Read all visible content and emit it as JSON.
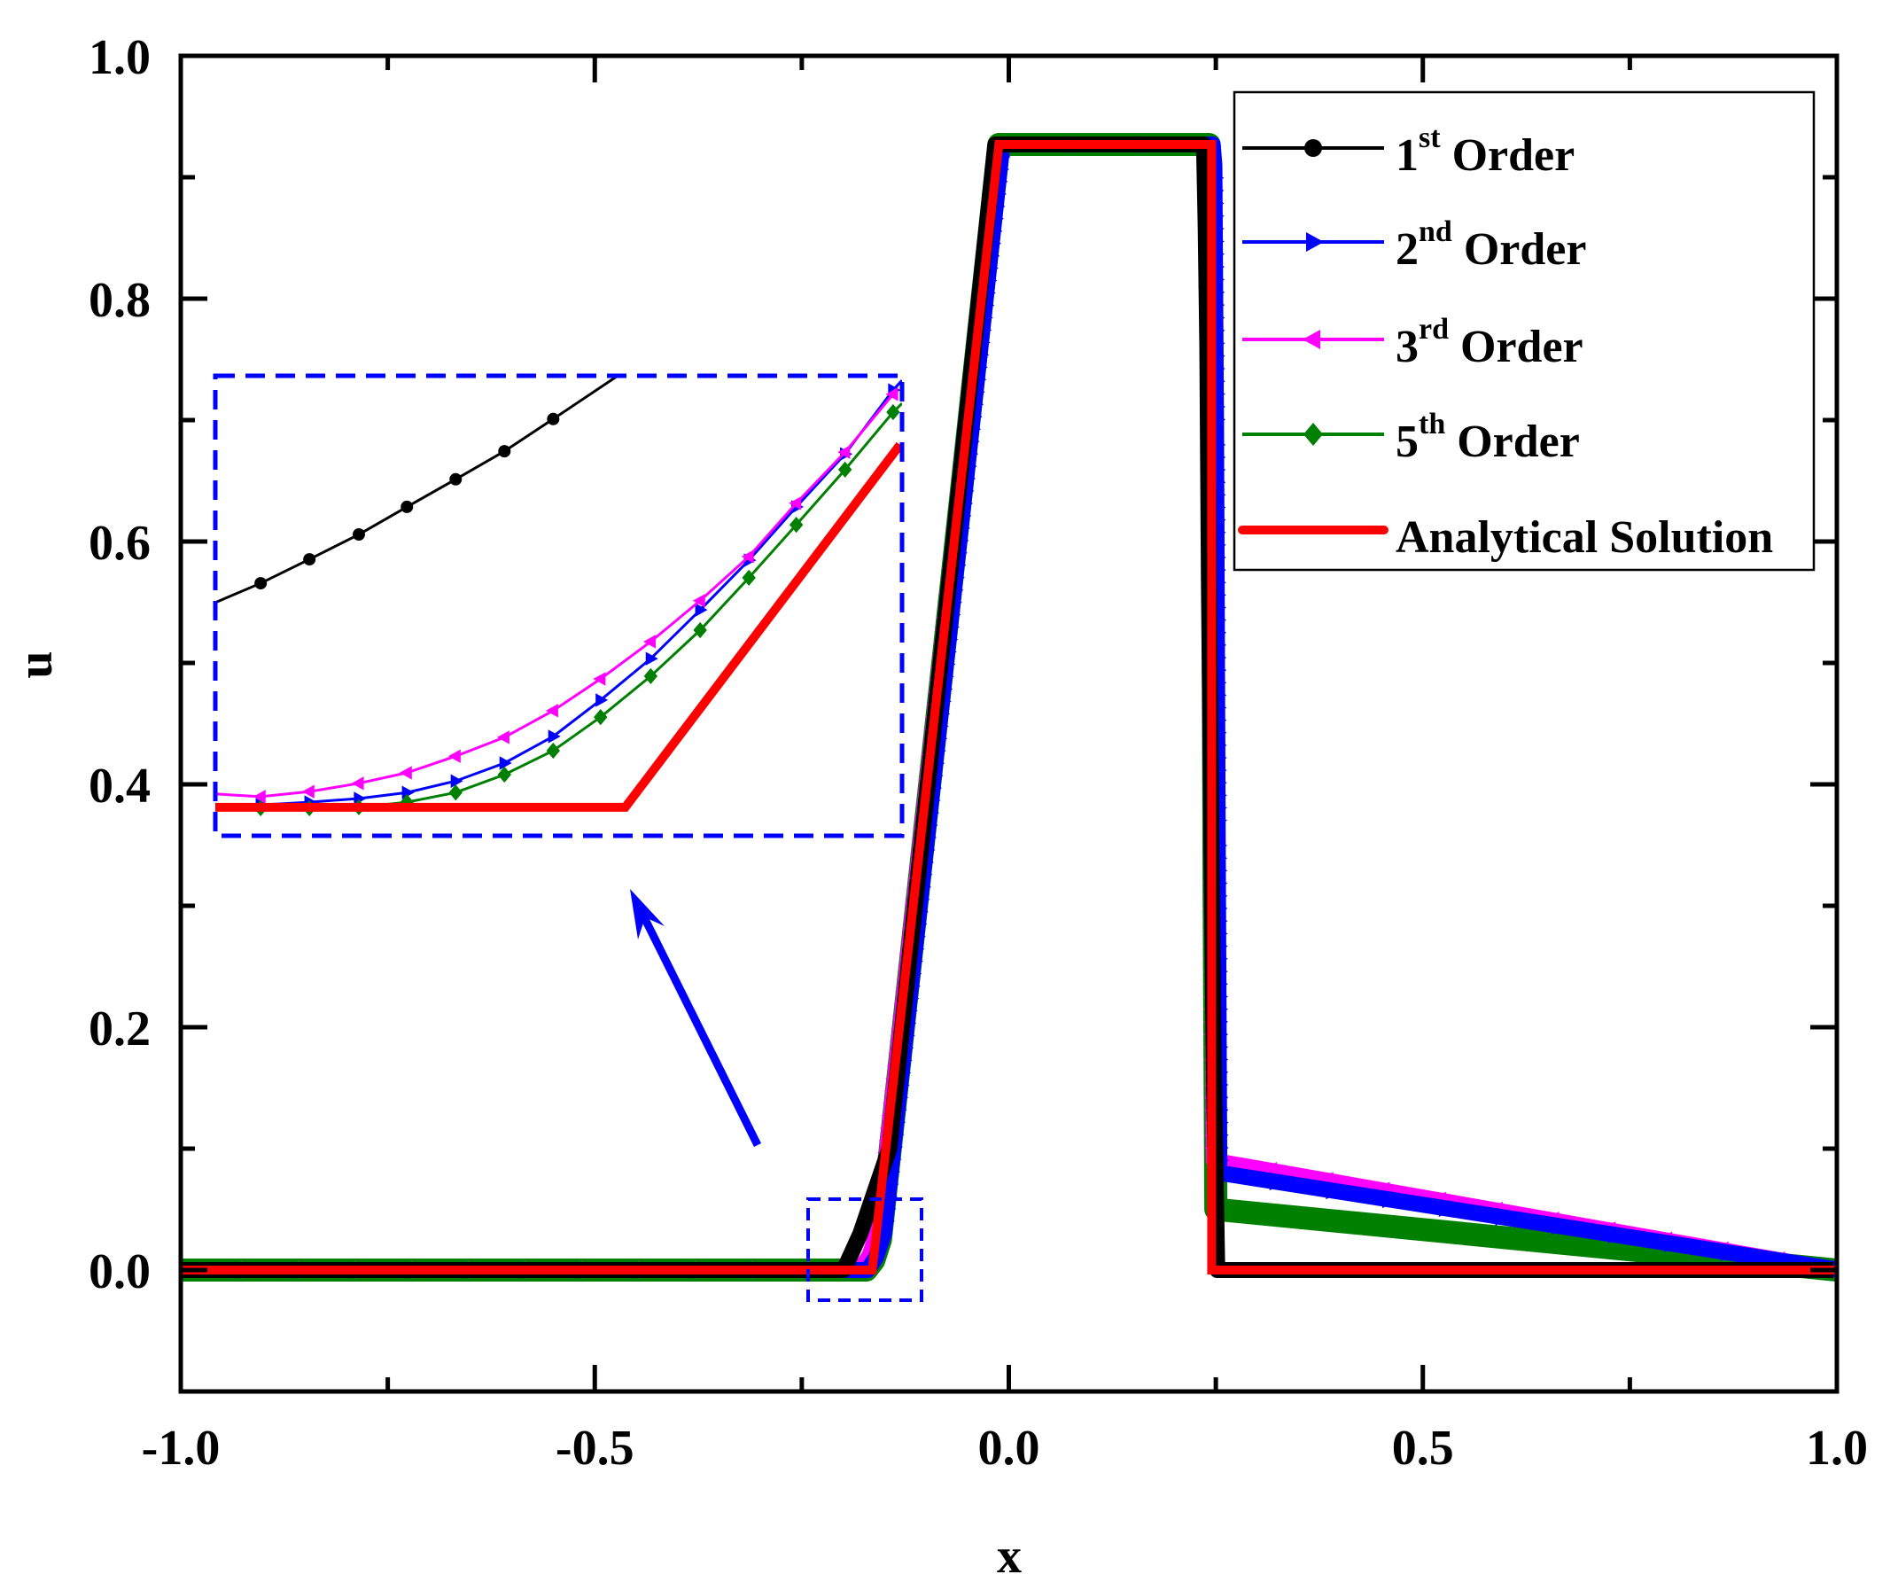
{
  "chart_data": {
    "type": "line",
    "title": "",
    "xlabel": "x",
    "ylabel": "u",
    "xlim": [
      -1.0,
      1.0
    ],
    "ylim": [
      -0.1,
      1.0
    ],
    "grid": false,
    "legend_position": "upper right (inside)",
    "x_ticks": [
      "-1.0",
      "-0.5",
      "0.0",
      "0.5",
      "1.0"
    ],
    "x_tick_values": [
      -1.0,
      -0.5,
      0.0,
      0.5,
      1.0
    ],
    "x_minor_ticks": [
      -0.75,
      -0.25,
      0.25,
      0.75
    ],
    "y_ticks": [
      "0.0",
      "0.2",
      "0.4",
      "0.6",
      "0.8",
      "1.0"
    ],
    "y_tick_values": [
      0.0,
      0.2,
      0.4,
      0.6,
      0.8,
      1.0
    ],
    "y_minor_ticks": [
      -0.1,
      0.1,
      0.3,
      0.5,
      0.7,
      0.9
    ],
    "series": [
      {
        "name": "1st Order",
        "sup": "st",
        "base": "1",
        "suffix": " Order",
        "color": "#000000",
        "marker": "circle",
        "line_width": 3,
        "x": [
          -1.0,
          -0.195,
          -0.175,
          -0.16,
          -0.14,
          -0.012,
          0.24,
          0.242,
          0.244,
          0.246,
          0.248,
          0.25,
          0.252,
          0.254,
          0.256,
          1.0
        ],
        "y": [
          0.0,
          0.0,
          0.03,
          0.06,
          0.1,
          0.927,
          0.927,
          0.86,
          0.76,
          0.56,
          0.42,
          0.28,
          0.16,
          0.08,
          0.0,
          0.0
        ]
      },
      {
        "name": "2nd Order",
        "sup": "nd",
        "base": "2",
        "suffix": " Order",
        "color": "#0000ff",
        "marker": "triangle-right",
        "line_width": 3,
        "x": [
          -1.0,
          -0.175,
          -0.165,
          -0.155,
          -0.012,
          0.242,
          0.244,
          0.246,
          0.248,
          0.25,
          1.0
        ],
        "y": [
          0.0,
          0.0,
          0.01,
          0.03,
          0.927,
          0.927,
          0.91,
          0.69,
          0.36,
          0.08,
          0.0
        ]
      },
      {
        "name": "3rd Order",
        "sup": "rd",
        "base": "3",
        "suffix": " Order",
        "color": "#ff00ff",
        "marker": "triangle-left",
        "line_width": 3,
        "x": [
          -1.0,
          -0.178,
          -0.166,
          -0.155,
          -0.012,
          0.242,
          0.244,
          0.246,
          0.248,
          0.25,
          1.0
        ],
        "y": [
          0.0,
          0.0,
          0.012,
          0.035,
          0.927,
          0.927,
          0.86,
          0.69,
          0.35,
          0.09,
          0.0
        ]
      },
      {
        "name": "5th Order",
        "sup": "th",
        "base": "5",
        "suffix": " Order",
        "color": "#008000",
        "marker": "diamond",
        "line_width": 3,
        "x": [
          -1.0,
          -0.172,
          -0.163,
          -0.155,
          -0.012,
          0.242,
          0.244,
          0.246,
          0.248,
          0.25,
          1.0
        ],
        "y": [
          0.0,
          0.0,
          0.008,
          0.025,
          0.927,
          0.927,
          0.88,
          0.68,
          0.3,
          0.05,
          0.0
        ]
      },
      {
        "name": "Analytical Solution",
        "sup": "",
        "base": "Analytical Solution",
        "suffix": "",
        "color": "#ff0000",
        "marker": "none",
        "line_width": 10,
        "x": [
          -1.0,
          -0.165,
          -0.012,
          0.245,
          0.245,
          1.0
        ],
        "y": [
          0.0,
          0.0,
          0.927,
          0.927,
          0.0,
          0.0
        ]
      }
    ],
    "inset": {
      "description": "Zoomed view of the foot of the expansion ramp near x ≈ -0.165, u ≈ 0",
      "source_region": {
        "x": [
          -0.25,
          -0.112
        ],
        "u": [
          -0.025,
          0.06
        ]
      },
      "coordinate_note": "points are normalized [0..1] positions within the inset box (nx left→right, ny top→bottom)",
      "series": [
        {
          "name": "1st Order",
          "color": "#000000",
          "marker": "circle",
          "points": [
            [
              0,
              0.493
            ],
            [
              0.066,
              0.451
            ],
            [
              0.137,
              0.399
            ],
            [
              0.209,
              0.345
            ],
            [
              0.279,
              0.285
            ],
            [
              0.35,
              0.225
            ],
            [
              0.421,
              0.164
            ],
            [
              0.492,
              0.094
            ],
            [
              0.586,
              0.0
            ]
          ],
          "marker_points": [
            [
              0.066,
              0.451
            ],
            [
              0.137,
              0.399
            ],
            [
              0.209,
              0.345
            ],
            [
              0.279,
              0.285
            ],
            [
              0.35,
              0.225
            ],
            [
              0.421,
              0.164
            ],
            [
              0.492,
              0.094
            ]
          ]
        },
        {
          "name": "2nd Order",
          "color": "#0000ff",
          "marker": "triangle-right",
          "points": [
            [
              0,
              0.935
            ],
            [
              0.066,
              0.933
            ],
            [
              0.137,
              0.927
            ],
            [
              0.209,
              0.919
            ],
            [
              0.279,
              0.906
            ],
            [
              0.35,
              0.881
            ],
            [
              0.421,
              0.842
            ],
            [
              0.492,
              0.784
            ],
            [
              0.561,
              0.705
            ],
            [
              0.634,
              0.615
            ],
            [
              0.706,
              0.509
            ],
            [
              0.777,
              0.401
            ],
            [
              0.846,
              0.285
            ],
            [
              0.917,
              0.17
            ],
            [
              0.987,
              0.031
            ],
            [
              1.0,
              0.01
            ]
          ],
          "marker_points": [
            [
              0.066,
              0.933
            ],
            [
              0.137,
              0.927
            ],
            [
              0.209,
              0.919
            ],
            [
              0.279,
              0.906
            ],
            [
              0.35,
              0.881
            ],
            [
              0.421,
              0.842
            ],
            [
              0.492,
              0.784
            ],
            [
              0.561,
              0.705
            ],
            [
              0.634,
              0.615
            ],
            [
              0.706,
              0.509
            ],
            [
              0.777,
              0.401
            ],
            [
              0.846,
              0.285
            ],
            [
              0.917,
              0.17
            ],
            [
              0.987,
              0.031
            ]
          ]
        },
        {
          "name": "3rd Order",
          "color": "#ff00ff",
          "marker": "triangle-left",
          "points": [
            [
              0,
              0.909
            ],
            [
              0.066,
              0.915
            ],
            [
              0.137,
              0.904
            ],
            [
              0.209,
              0.886
            ],
            [
              0.279,
              0.863
            ],
            [
              0.35,
              0.827
            ],
            [
              0.421,
              0.786
            ],
            [
              0.492,
              0.728
            ],
            [
              0.561,
              0.659
            ],
            [
              0.634,
              0.578
            ],
            [
              0.706,
              0.489
            ],
            [
              0.777,
              0.393
            ],
            [
              0.846,
              0.277
            ],
            [
              0.917,
              0.166
            ],
            [
              0.987,
              0.04
            ]
          ],
          "marker_points": [
            [
              0.066,
              0.915
            ],
            [
              0.137,
              0.904
            ],
            [
              0.209,
              0.886
            ],
            [
              0.279,
              0.863
            ],
            [
              0.35,
              0.827
            ],
            [
              0.421,
              0.786
            ],
            [
              0.492,
              0.728
            ],
            [
              0.561,
              0.659
            ],
            [
              0.634,
              0.578
            ],
            [
              0.706,
              0.489
            ],
            [
              0.777,
              0.393
            ],
            [
              0.846,
              0.277
            ],
            [
              0.917,
              0.166
            ],
            [
              0.987,
              0.04
            ]
          ]
        },
        {
          "name": "5th Order",
          "color": "#008000",
          "marker": "diamond",
          "points": [
            [
              0,
              0.94
            ],
            [
              0.066,
              0.94
            ],
            [
              0.137,
              0.94
            ],
            [
              0.209,
              0.938
            ],
            [
              0.279,
              0.927
            ],
            [
              0.35,
              0.906
            ],
            [
              0.421,
              0.867
            ],
            [
              0.492,
              0.815
            ],
            [
              0.561,
              0.742
            ],
            [
              0.634,
              0.653
            ],
            [
              0.706,
              0.553
            ],
            [
              0.777,
              0.439
            ],
            [
              0.846,
              0.324
            ],
            [
              0.917,
              0.204
            ],
            [
              0.987,
              0.079
            ],
            [
              1.0,
              0.06
            ]
          ],
          "marker_points": [
            [
              0.066,
              0.94
            ],
            [
              0.137,
              0.94
            ],
            [
              0.209,
              0.938
            ],
            [
              0.279,
              0.927
            ],
            [
              0.35,
              0.906
            ],
            [
              0.421,
              0.867
            ],
            [
              0.492,
              0.815
            ],
            [
              0.561,
              0.742
            ],
            [
              0.634,
              0.653
            ],
            [
              0.706,
              0.553
            ],
            [
              0.777,
              0.439
            ],
            [
              0.846,
              0.324
            ],
            [
              0.917,
              0.204
            ],
            [
              0.987,
              0.079
            ]
          ]
        },
        {
          "name": "Analytical Solution",
          "color": "#ff0000",
          "marker": "none",
          "points": [
            [
              0,
              0.938
            ],
            [
              0.597,
              0.938
            ],
            [
              0.997,
              0.15
            ]
          ],
          "marker_points": []
        }
      ]
    },
    "annotations": [
      {
        "type": "dashed-box",
        "label": "zoom-source-region",
        "color": "#0000ff",
        "x": [
          -0.25,
          -0.112
        ],
        "u": [
          -0.025,
          0.06
        ]
      },
      {
        "type": "dashed-box",
        "label": "inset-frame",
        "color": "#0000ff"
      },
      {
        "type": "arrow",
        "label": "zoom-arrow",
        "color": "#0000ff",
        "from": "near source box",
        "to": "inset"
      }
    ]
  },
  "colors": {
    "axis": "#000000",
    "annotation": "#0000ff",
    "background": "#ffffff"
  }
}
